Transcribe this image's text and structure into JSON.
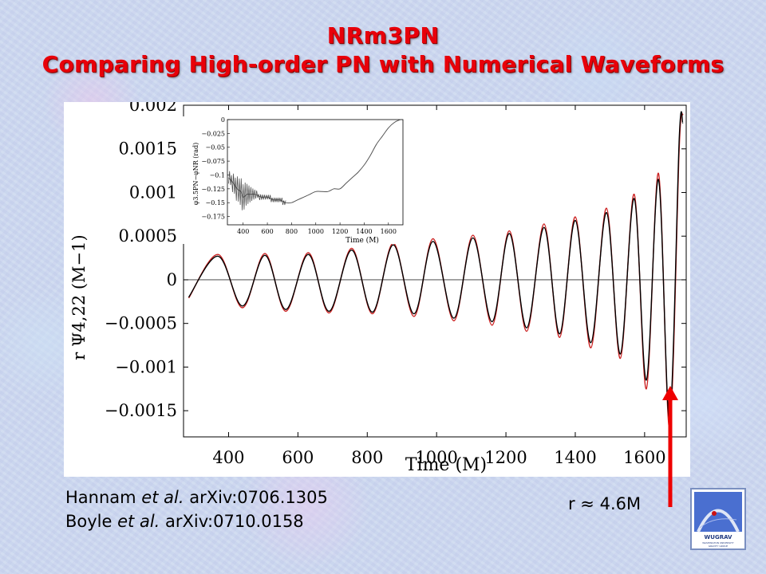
{
  "slide": {
    "title_line1": "NRm3PN",
    "title_line2": "Comparing High-order PN with Numerical Waveforms",
    "citations": [
      {
        "authors": "Hannam",
        "etal": "et al.",
        "ref": "arXiv:0706.1305"
      },
      {
        "authors": "Boyle",
        "etal": "et al.",
        "ref": "arXiv:0710.0158"
      }
    ],
    "arrow_label": "r ≈ 4.6M",
    "logo": {
      "text": "WUGRAV",
      "subtext_lines": [
        "WASHINGTON UNIVERSITY",
        "GRAVITY GROUP"
      ]
    }
  },
  "colors": {
    "title": "#e8000a",
    "numerical_curve": "#000000",
    "pn_curve": "#cc2222",
    "arrow": "#ee0000",
    "inset_curve": "#555555"
  },
  "chart_data": [
    {
      "type": "line",
      "xlabel": "Time (M)",
      "ylabel": "r Ψ4,22 (M−1)",
      "xlim": [
        270,
        1720
      ],
      "ylim": [
        -0.0018,
        0.002
      ],
      "xticks": [
        400,
        600,
        800,
        1000,
        1200,
        1400,
        1600
      ],
      "yticks": [
        -0.0015,
        -0.001,
        -0.0005,
        0,
        0.0005,
        0.001,
        0.0015,
        0.002
      ],
      "ytick_labels": [
        "−0.0015",
        "−0.001",
        "−0.0005",
        "0",
        "0.0005",
        "0.001",
        "0.0015",
        "0.002"
      ],
      "series": [
        {
          "style": "black",
          "points": [
            [
              285,
              -0.0002
            ],
            [
              370,
              0.00027
            ],
            [
              440,
              -0.0003
            ],
            [
              505,
              0.00028
            ],
            [
              565,
              -0.00034
            ],
            [
              630,
              0.00029
            ],
            [
              690,
              -0.00036
            ],
            [
              755,
              0.00034
            ],
            [
              815,
              -0.00037
            ],
            [
              875,
              0.0004
            ],
            [
              935,
              -0.00039
            ],
            [
              990,
              0.00044
            ],
            [
              1050,
              -0.00044
            ],
            [
              1105,
              0.00048
            ],
            [
              1160,
              -0.00048
            ],
            [
              1210,
              0.00053
            ],
            [
              1260,
              -0.00055
            ],
            [
              1310,
              0.0006
            ],
            [
              1355,
              -0.00062
            ],
            [
              1400,
              0.00068
            ],
            [
              1445,
              -0.00072
            ],
            [
              1490,
              0.00077
            ],
            [
              1530,
              -0.00085
            ],
            [
              1570,
              0.00093
            ],
            [
              1605,
              -0.00115
            ],
            [
              1640,
              0.00115
            ],
            [
              1672,
              -0.0016
            ],
            [
              1700,
              0.00163
            ],
            [
              1710,
              0.0018
            ]
          ]
        },
        {
          "style": "red",
          "points": [
            [
              285,
              -0.00021
            ],
            [
              370,
              0.00029
            ],
            [
              440,
              -0.00032
            ],
            [
              505,
              0.0003
            ],
            [
              565,
              -0.00036
            ],
            [
              630,
              0.00031
            ],
            [
              690,
              -0.00038
            ],
            [
              755,
              0.00036
            ],
            [
              815,
              -0.00039
            ],
            [
              875,
              0.00042
            ],
            [
              935,
              -0.00042
            ],
            [
              990,
              0.00047
            ],
            [
              1050,
              -0.00047
            ],
            [
              1105,
              0.00051
            ],
            [
              1160,
              -0.00052
            ],
            [
              1210,
              0.00056
            ],
            [
              1260,
              -0.00059
            ],
            [
              1310,
              0.00064
            ],
            [
              1355,
              -0.00066
            ],
            [
              1400,
              0.00072
            ],
            [
              1445,
              -0.00078
            ],
            [
              1490,
              0.00082
            ],
            [
              1530,
              -0.0009
            ],
            [
              1570,
              0.00098
            ],
            [
              1605,
              -0.00125
            ],
            [
              1640,
              0.00122
            ],
            [
              1672,
              -0.0017
            ],
            [
              1700,
              0.00152
            ],
            [
              1710,
              0.0019
            ]
          ]
        }
      ]
    },
    {
      "type": "line",
      "xlabel": "Time (M)",
      "ylabel": "φ3.5PN−φNR (rad)",
      "xlim": [
        270,
        1720
      ],
      "ylim": [
        -0.19,
        0.0
      ],
      "xticks": [
        400,
        600,
        800,
        1000,
        1200,
        1400,
        1600
      ],
      "yticks": [
        0,
        -0.025,
        -0.05,
        -0.075,
        -0.1,
        -0.125,
        -0.15,
        -0.175
      ],
      "ytick_labels": [
        "0",
        "−0.025",
        "−0.05",
        "−0.075",
        "−0.1",
        "−0.125",
        "−0.15",
        "−0.175"
      ],
      "series": [
        {
          "style": "gray",
          "points": [
            [
              280,
              -0.105
            ],
            [
              320,
              -0.115
            ],
            [
              350,
              -0.125
            ],
            [
              380,
              -0.13
            ],
            [
              400,
              -0.14
            ],
            [
              430,
              -0.135
            ],
            [
              460,
              -0.135
            ],
            [
              500,
              -0.135
            ],
            [
              550,
              -0.14
            ],
            [
              600,
              -0.14
            ],
            [
              650,
              -0.145
            ],
            [
              700,
              -0.145
            ],
            [
              750,
              -0.15
            ],
            [
              800,
              -0.15
            ],
            [
              850,
              -0.145
            ],
            [
              900,
              -0.14
            ],
            [
              950,
              -0.135
            ],
            [
              1000,
              -0.13
            ],
            [
              1050,
              -0.13
            ],
            [
              1100,
              -0.13
            ],
            [
              1150,
              -0.125
            ],
            [
              1200,
              -0.125
            ],
            [
              1250,
              -0.115
            ],
            [
              1300,
              -0.105
            ],
            [
              1350,
              -0.095
            ],
            [
              1400,
              -0.082
            ],
            [
              1450,
              -0.065
            ],
            [
              1500,
              -0.045
            ],
            [
              1550,
              -0.03
            ],
            [
              1600,
              -0.015
            ],
            [
              1650,
              -0.005
            ],
            [
              1700,
              0.0
            ]
          ]
        }
      ]
    }
  ]
}
